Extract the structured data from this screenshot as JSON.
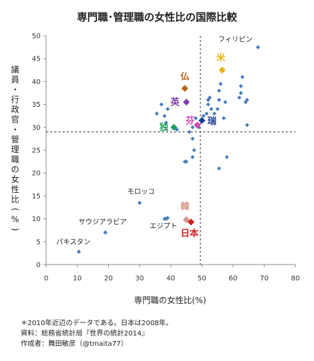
{
  "chart_data": {
    "type": "scatter",
    "title": "専門職･管理職の女性比の国際比較",
    "xlabel": "専門職の女性比(%)",
    "ylabel": "議員・行政官・管理職の女性比(%)",
    "xlim": [
      0,
      80
    ],
    "ylim": [
      0,
      50
    ],
    "xticks": [
      "0",
      "10",
      "20",
      "30",
      "40",
      "50",
      "60",
      "70",
      "80"
    ],
    "yticks": [
      "0",
      "5",
      "10",
      "15",
      "20",
      "25",
      "30",
      "35",
      "40",
      "45",
      "50"
    ],
    "grid": false,
    "reference_lines": {
      "x": 49.5,
      "y": 29
    },
    "points": [
      [
        68,
        47.5
      ],
      [
        35.5,
        33
      ],
      [
        37,
        35
      ],
      [
        38,
        32.5
      ],
      [
        38.5,
        31
      ],
      [
        39,
        34
      ],
      [
        42,
        29.5
      ],
      [
        46,
        29
      ],
      [
        47,
        30
      ],
      [
        47,
        27.5
      ],
      [
        47.5,
        25
      ],
      [
        47,
        23.5
      ],
      [
        44.5,
        22.5
      ],
      [
        48,
        32
      ],
      [
        49,
        30
      ],
      [
        50.5,
        32.5
      ],
      [
        51.5,
        33
      ],
      [
        52,
        35
      ],
      [
        52.5,
        36.5
      ],
      [
        53,
        34
      ],
      [
        54,
        33
      ],
      [
        55,
        34
      ],
      [
        55.5,
        36
      ],
      [
        55.5,
        38
      ],
      [
        56,
        39.5
      ],
      [
        57,
        32
      ],
      [
        57.5,
        35.5
      ],
      [
        62,
        36.5
      ],
      [
        62.5,
        39
      ],
      [
        62.5,
        37.5
      ],
      [
        63,
        41
      ],
      [
        64,
        35.5
      ],
      [
        64.5,
        36
      ],
      [
        55.5,
        21
      ],
      [
        58,
        23.5
      ],
      [
        64.5,
        30.5
      ],
      [
        38,
        10
      ],
      [
        39,
        10.2
      ],
      [
        30,
        13.5
      ],
      [
        19,
        7
      ],
      [
        10.5,
        2.8
      ],
      [
        45,
        22.5
      ],
      [
        52,
        36
      ]
    ],
    "labeled_points": [
      {
        "label": "フィリピン",
        "x": 68,
        "y": 47.5,
        "color": "#4a7ebb",
        "style": "small"
      },
      {
        "label": "米",
        "x": 56.5,
        "y": 42.5,
        "color": "#e8b20a",
        "style": "big"
      },
      {
        "label": "仏",
        "x": 44.5,
        "y": 38.5,
        "color": "#b5651d",
        "style": "big"
      },
      {
        "label": "英",
        "x": 45,
        "y": 35.5,
        "color": "#7a3fa8",
        "style": "big"
      },
      {
        "label": "芬",
        "x": 48.5,
        "y": 30.5,
        "color": "#d946b5",
        "style": "big"
      },
      {
        "label": "瑞",
        "x": 50,
        "y": 31.5,
        "color": "#1f3a93",
        "style": "big"
      },
      {
        "label": "独",
        "x": 41,
        "y": 30,
        "color": "#1a9e5a",
        "style": "big"
      },
      {
        "label": "モロッコ",
        "x": 30,
        "y": 13.5,
        "color": "#4a7ebb",
        "style": "small"
      },
      {
        "label": "サウジアラビア",
        "x": 19,
        "y": 7,
        "color": "#4a7ebb",
        "style": "small"
      },
      {
        "label": "パキスタン",
        "x": 10.5,
        "y": 2.8,
        "color": "#4a7ebb",
        "style": "small"
      },
      {
        "label": "エジプト",
        "x": 38.5,
        "y": 10,
        "color": "#4a7ebb",
        "style": "small"
      },
      {
        "label": "韓",
        "x": 45,
        "y": 9.8,
        "color": "#d4948a",
        "style": "big"
      },
      {
        "label": "日本",
        "x": 46.5,
        "y": 9.3,
        "color": "#d42020",
        "style": "big"
      }
    ]
  },
  "notes": [
    "＊2010年近辺のデータである。日本は2008年。",
    "資料：総務省統計局『世界の統計2014』",
    "作成者：舞田敏彦（@tmaita77）"
  ]
}
